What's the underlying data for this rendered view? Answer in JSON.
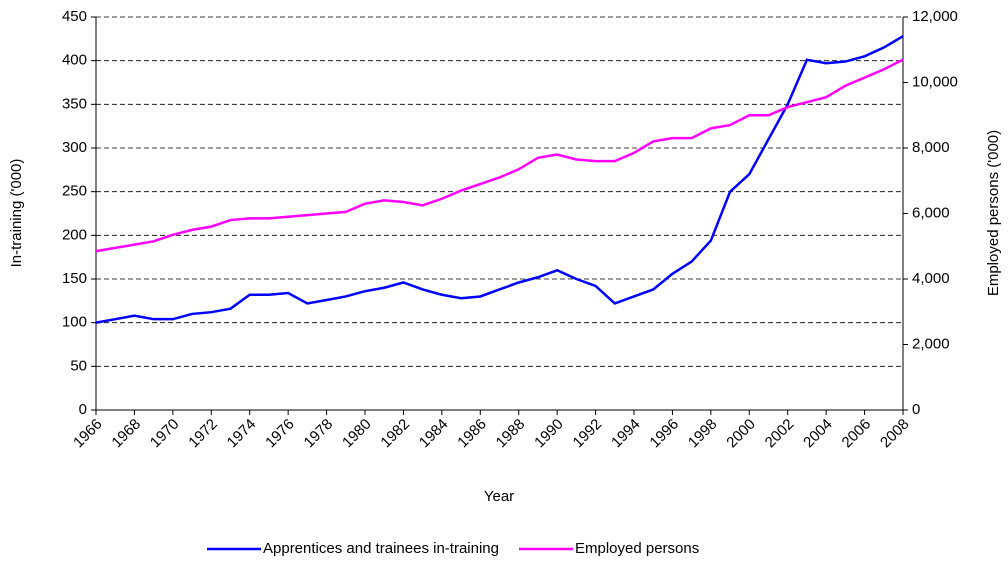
{
  "chart_data": {
    "type": "line",
    "x_label": "Year",
    "y_label": "In-training ('000)",
    "y2_label": "Employed persons ('000)",
    "x": [
      1966,
      1967,
      1968,
      1969,
      1970,
      1971,
      1972,
      1973,
      1974,
      1975,
      1976,
      1977,
      1978,
      1979,
      1980,
      1981,
      1982,
      1983,
      1984,
      1985,
      1986,
      1987,
      1988,
      1989,
      1990,
      1991,
      1992,
      1993,
      1994,
      1995,
      1996,
      1997,
      1998,
      1999,
      2000,
      2001,
      2002,
      2003,
      2004,
      2005,
      2006,
      2007,
      2008
    ],
    "series": [
      {
        "name": "Apprentices and trainees in-training",
        "color": "#0000ff",
        "values": [
          100,
          104,
          108,
          104,
          104,
          110,
          112,
          116,
          132,
          132,
          134,
          122,
          126,
          130,
          136,
          140,
          146,
          138,
          132,
          128,
          130,
          138,
          146,
          152,
          160,
          150,
          142,
          122,
          130,
          138,
          156,
          170,
          194,
          250,
          270,
          310,
          350,
          401,
          397,
          399,
          405,
          415,
          428
        ]
      },
      {
        "name": "Employed persons",
        "color": "#ff00ff",
        "axis": "y2",
        "values": [
          4850,
          4950,
          5050,
          5150,
          5350,
          5500,
          5600,
          5800,
          5850,
          5850,
          5900,
          5950,
          6000,
          6050,
          6300,
          6400,
          6350,
          6250,
          6450,
          6700,
          6900,
          7100,
          7350,
          7700,
          7800,
          7650,
          7600,
          7600,
          7850,
          8200,
          8300,
          8300,
          8600,
          8700,
          9000,
          9000,
          9250,
          9400,
          9550,
          9900,
          10150,
          10400,
          10700
        ]
      }
    ],
    "xlim": [
      1966,
      2008
    ],
    "xticks": [
      1966,
      1968,
      1970,
      1972,
      1974,
      1976,
      1978,
      1980,
      1982,
      1984,
      1986,
      1988,
      1990,
      1992,
      1994,
      1996,
      1998,
      2000,
      2002,
      2004,
      2006,
      2008
    ],
    "ylim": [
      0,
      450
    ],
    "yticks": [
      0,
      50,
      100,
      150,
      200,
      250,
      300,
      350,
      400,
      450
    ],
    "y2lim": [
      0,
      12000
    ],
    "y2ticks": [
      0,
      {
        "value": 2000,
        "label": "2,000"
      },
      {
        "value": 4000,
        "label": "4,000"
      },
      {
        "value": 6000,
        "label": "6,000"
      },
      {
        "value": 8000,
        "label": "8,000"
      },
      {
        "value": 10000,
        "label": "10,000"
      },
      {
        "value": 12000,
        "label": "12,000"
      }
    ],
    "grid": true,
    "legend": "bottom"
  }
}
